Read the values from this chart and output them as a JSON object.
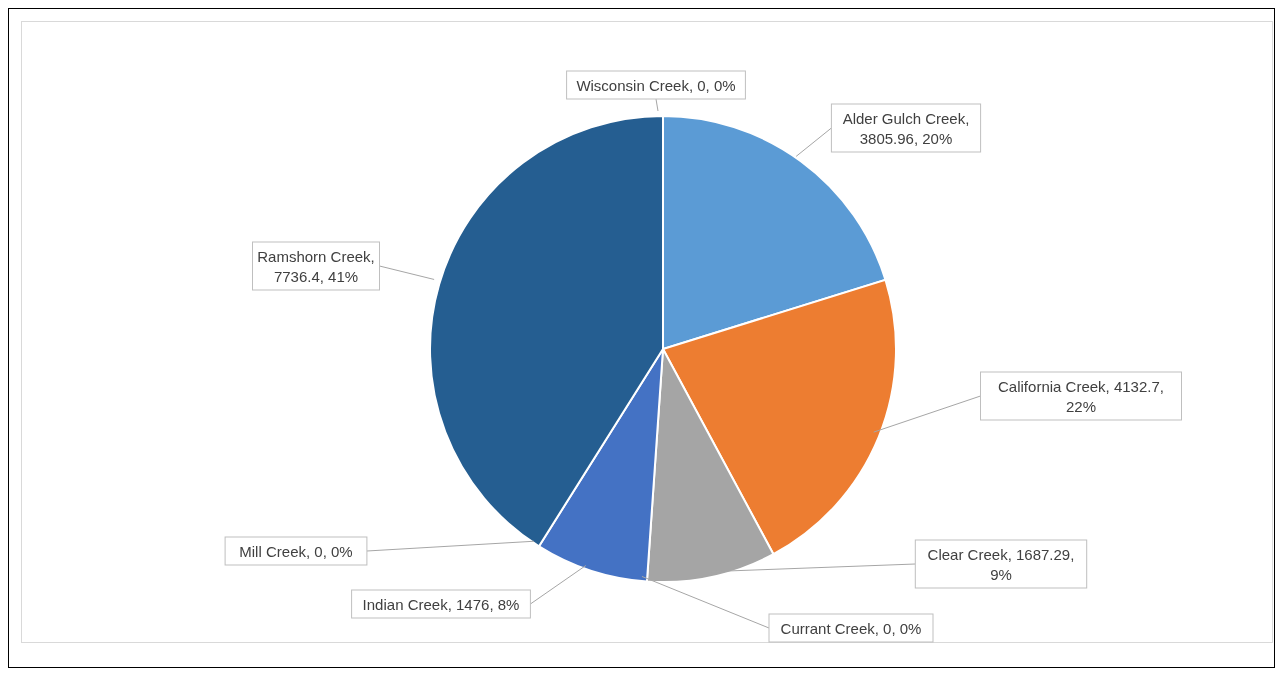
{
  "chart_data": {
    "type": "pie",
    "categories": [
      "Alder Gulch Creek",
      "California Creek",
      "Clear Creek",
      "Currant Creek",
      "Indian Creek",
      "Mill Creek",
      "Ramshorn Creek",
      "Wisconsin Creek"
    ],
    "values": [
      3805.96,
      4132.7,
      1687.29,
      0,
      1476,
      0,
      7736.4,
      0
    ],
    "colors": [
      "#5b9bd5",
      "#ed7d31",
      "#a5a5a5",
      "#ffc000",
      "#4472c4",
      "#70ad47",
      "#255e91",
      "#9e480e"
    ],
    "value_labels": [
      ", 3805.96, 20%",
      ", 4132.7, 22%",
      ", 1687.29, 9%",
      ", 0, 0%",
      ", 1476, 8%",
      ", 0, 0%",
      ", 7736.4, 41%",
      ", 0, 0%"
    ]
  }
}
